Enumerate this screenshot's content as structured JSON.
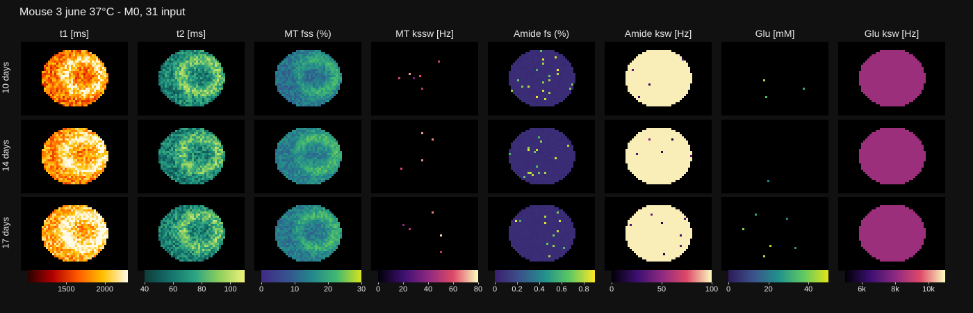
{
  "title": "Mouse 3 june 37°C - M0, 31 input",
  "chart_data": {
    "type": "heatmap",
    "title": "Mouse 3 june 37°C - M0, 31 input",
    "rows": [
      "10 days",
      "14 days",
      "17 days"
    ],
    "panels": [
      {
        "id": "t1",
        "title": "t1 [ms]",
        "colormap": "hot",
        "colors": [
          "#2a0000",
          "#b30000",
          "#ff5a00",
          "#ffc000",
          "#fffbe8"
        ],
        "range": [
          1000,
          2300
        ],
        "ticks": [
          {
            "v": 1500,
            "label": "1500"
          },
          {
            "v": 2000,
            "label": "2000"
          }
        ],
        "style": "t1",
        "mean_level": [
          0.55,
          0.62,
          0.7
        ]
      },
      {
        "id": "t2",
        "title": "t2 [ms]",
        "colormap": "viridis",
        "colors": [
          "#0f3b3b",
          "#14706b",
          "#2aa383",
          "#8fcf5c",
          "#eef27a"
        ],
        "range": [
          40,
          110
        ],
        "ticks": [
          {
            "v": 40,
            "label": "40"
          },
          {
            "v": 60,
            "label": "60"
          },
          {
            "v": 80,
            "label": "80"
          },
          {
            "v": 100,
            "label": "100"
          }
        ],
        "style": "t2",
        "mean_level": [
          0.35,
          0.33,
          0.34
        ]
      },
      {
        "id": "mt_fss",
        "title": "MT fss (%)",
        "colormap": "viridis",
        "colors": [
          "#3f2a83",
          "#37508f",
          "#23868c",
          "#40b873",
          "#d7e31d"
        ],
        "range": [
          0,
          30
        ],
        "ticks": [
          {
            "v": 0,
            "label": "0"
          },
          {
            "v": 10,
            "label": "10"
          },
          {
            "v": 20,
            "label": "20"
          },
          {
            "v": 30,
            "label": "30"
          }
        ],
        "style": "mt",
        "mean_level": [
          0.45,
          0.5,
          0.48
        ]
      },
      {
        "id": "mt_kssw",
        "title": "MT kssw [Hz]",
        "colormap": "magma",
        "colors": [
          "#000004",
          "#3b0f70",
          "#8c2981",
          "#de4968",
          "#fcfdbf"
        ],
        "range": [
          0,
          80
        ],
        "ticks": [
          {
            "v": 0,
            "label": "0"
          },
          {
            "v": 20,
            "label": "20"
          },
          {
            "v": 40,
            "label": "40"
          },
          {
            "v": 60,
            "label": "60"
          },
          {
            "v": 80,
            "label": "80"
          }
        ],
        "style": "dark",
        "mean_level": [
          0.02,
          0.02,
          0.02
        ]
      },
      {
        "id": "amide_fs",
        "title": "Amide fs (%)",
        "colormap": "viridis",
        "colors": [
          "#3a1f6e",
          "#3b528b",
          "#21918c",
          "#5ec962",
          "#fde725"
        ],
        "range": [
          0,
          0.9
        ],
        "ticks": [
          {
            "v": 0,
            "label": "0"
          },
          {
            "v": 0.2,
            "label": "0.2"
          },
          {
            "v": 0.4,
            "label": "0.4"
          },
          {
            "v": 0.6,
            "label": "0.6"
          },
          {
            "v": 0.8,
            "label": "0.8"
          }
        ],
        "style": "flat_purple",
        "mean_level": [
          0.05,
          0.05,
          0.05
        ]
      },
      {
        "id": "amide_ksw",
        "title": "Amide ksw [Hz]",
        "colormap": "magma",
        "colors": [
          "#000004",
          "#3b0f70",
          "#8c2981",
          "#de4968",
          "#fbfbbf"
        ],
        "range": [
          0,
          100
        ],
        "ticks": [
          {
            "v": 0,
            "label": "0"
          },
          {
            "v": 50,
            "label": "50"
          },
          {
            "v": 100,
            "label": "100"
          }
        ],
        "style": "flat_cream",
        "mean_level": [
          0.98,
          0.98,
          0.98
        ]
      },
      {
        "id": "glu",
        "title": "Glu [mM]",
        "colormap": "viridis",
        "colors": [
          "#2d1b5a",
          "#3b528b",
          "#21918c",
          "#5ec962",
          "#e2e418"
        ],
        "range": [
          0,
          50
        ],
        "ticks": [
          {
            "v": 0,
            "label": "0"
          },
          {
            "v": 20,
            "label": "20"
          },
          {
            "v": 40,
            "label": "40"
          }
        ],
        "style": "dark",
        "mean_level": [
          0.02,
          0.02,
          0.02
        ]
      },
      {
        "id": "glu_ksw",
        "title": "Glu ksw [Hz]",
        "colormap": "magma",
        "colors": [
          "#000004",
          "#3b0f70",
          "#8c2981",
          "#de4968",
          "#fcfdbf"
        ],
        "range": [
          5000,
          11000
        ],
        "ticks": [
          {
            "v": 6000,
            "label": "6k"
          },
          {
            "v": 8000,
            "label": "8k"
          },
          {
            "v": 10000,
            "label": "10k"
          }
        ],
        "style": "flat_magenta",
        "mean_level": [
          0.55,
          0.55,
          0.55
        ]
      }
    ]
  }
}
